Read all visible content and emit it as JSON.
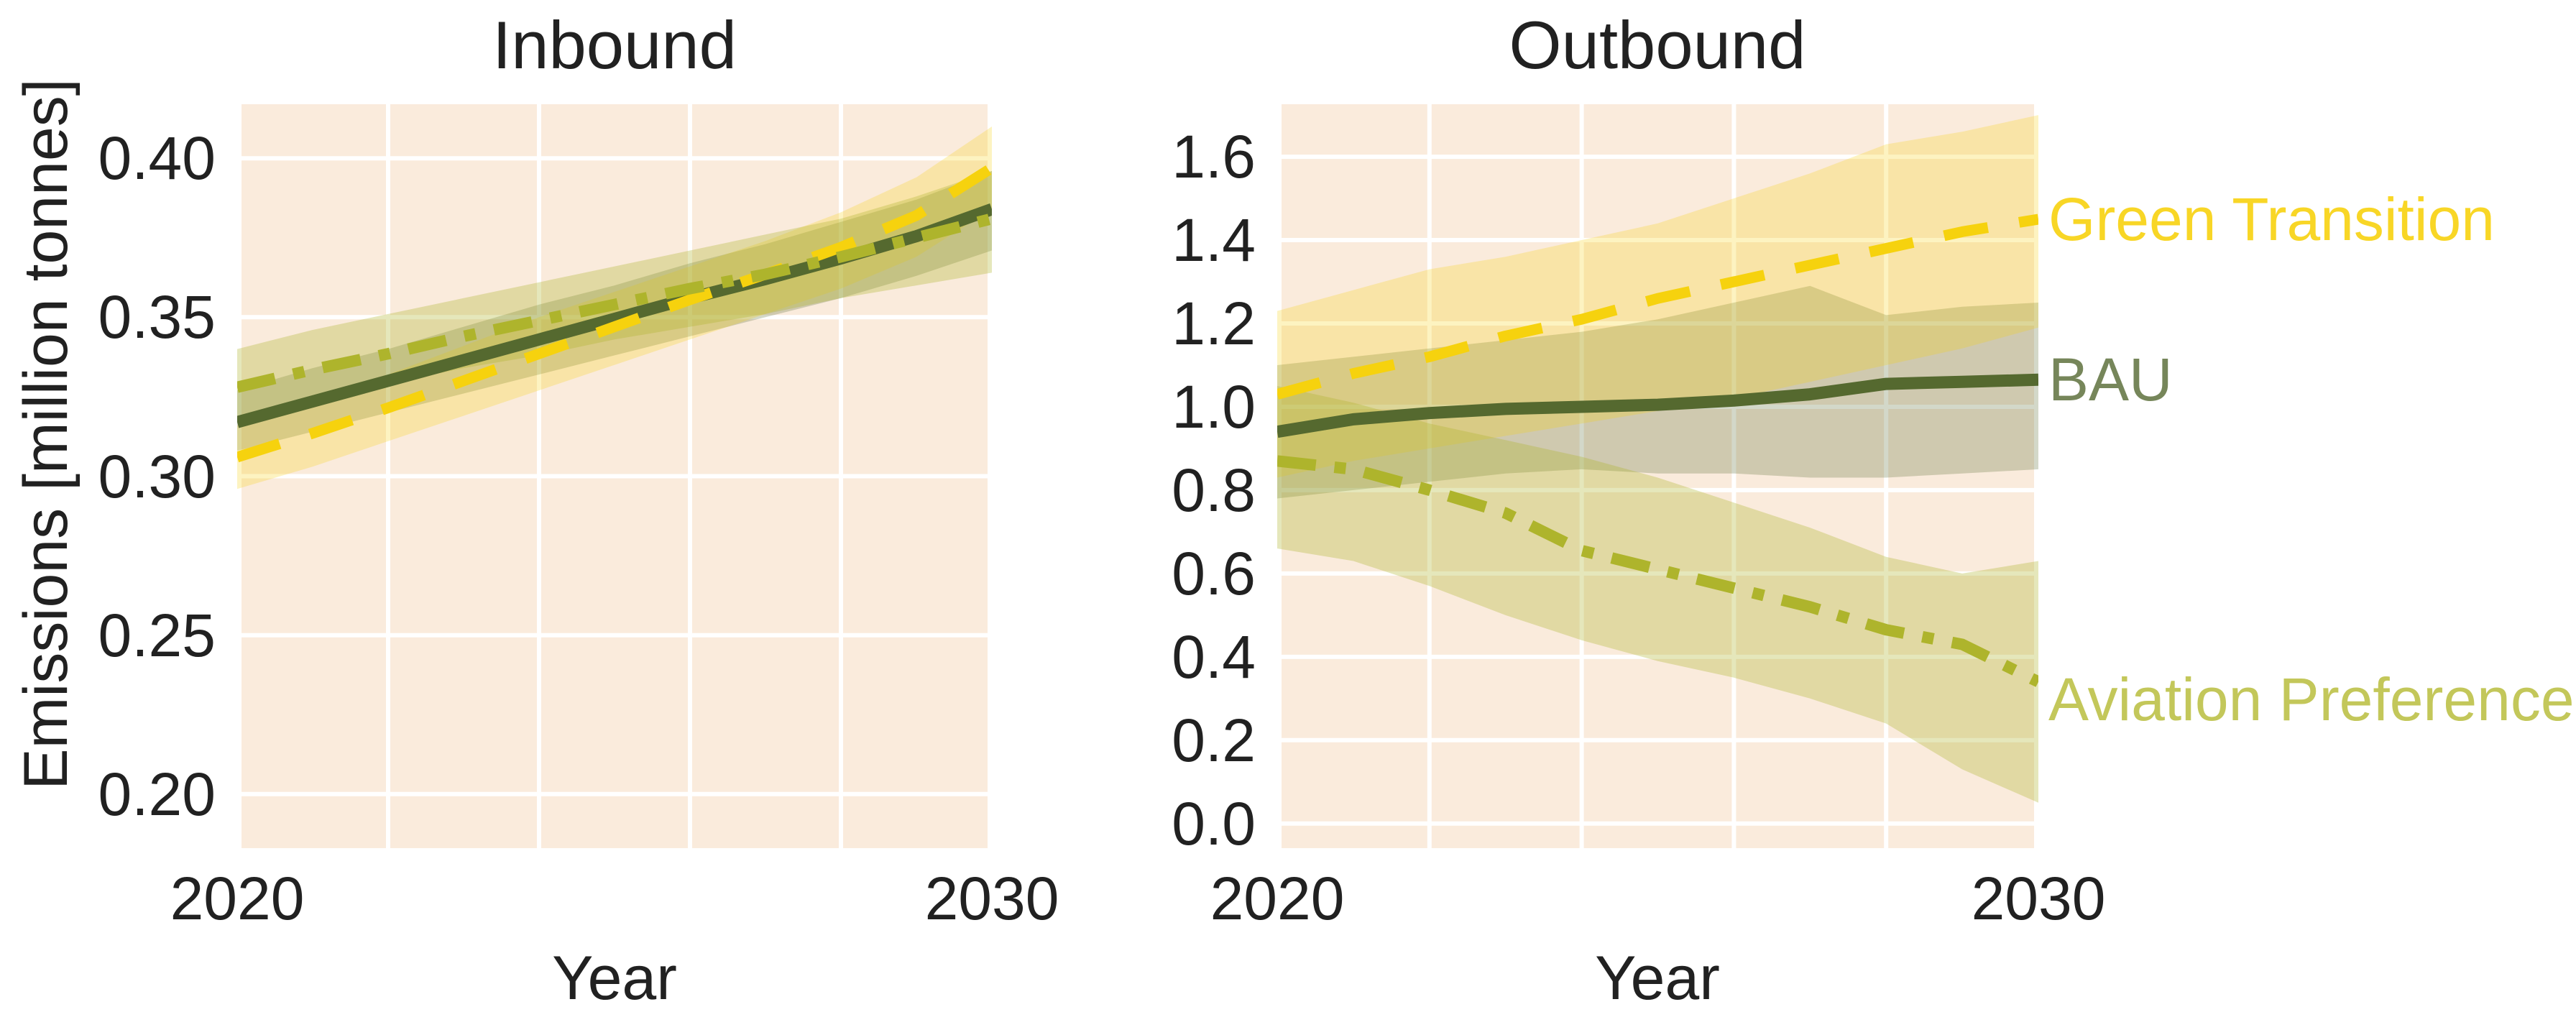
{
  "figure": {
    "background": "#ffffff",
    "plot_background": "#faebdc",
    "grid_color": "#ffffff",
    "text_color": "#212121"
  },
  "ylabel": "Emissions [million tonnes]",
  "chart_data": [
    {
      "id": "inbound",
      "type": "line",
      "title": "Inbound",
      "xlabel": "Year",
      "ylabel": "Emissions [million tonnes]",
      "grid": true,
      "legend_position": "none",
      "x": [
        2020,
        2021,
        2022,
        2023,
        2024,
        2025,
        2026,
        2027,
        2028,
        2029,
        2030
      ],
      "x_tick_values": [
        2020,
        2030
      ],
      "x_tick_labels": [
        "2020",
        "2030"
      ],
      "x_grid_step": 2,
      "y_tick_values": [
        0.4,
        0.35,
        0.3,
        0.25,
        0.2
      ],
      "y_tick_labels": [
        "0.40",
        "0.35",
        "0.30",
        "0.25",
        "0.20"
      ],
      "ylim": [
        0.183,
        0.417
      ],
      "axes_rect": [
        330,
        145,
        1050,
        1035
      ],
      "series": [
        {
          "key": "bau",
          "label": "BAU",
          "style": "solid",
          "width": 17,
          "color": "#55692f",
          "band_opacity": 0.26,
          "values": [
            0.317,
            0.3235,
            0.33,
            0.3365,
            0.343,
            0.3495,
            0.356,
            0.362,
            0.3685,
            0.3755,
            0.384
          ],
          "band_lower": [
            0.308,
            0.314,
            0.32,
            0.326,
            0.332,
            0.338,
            0.344,
            0.35,
            0.356,
            0.363,
            0.371
          ],
          "band_upper": [
            0.327,
            0.334,
            0.34,
            0.347,
            0.354,
            0.36,
            0.367,
            0.373,
            0.38,
            0.387,
            0.396
          ]
        },
        {
          "key": "green_transition",
          "label": "Green Transition",
          "style": "dashed",
          "width": 15,
          "color": "#f6d20e",
          "band_opacity": 0.26,
          "values": [
            0.306,
            0.3135,
            0.3215,
            0.33,
            0.3385,
            0.347,
            0.3555,
            0.3635,
            0.372,
            0.382,
            0.397
          ],
          "band_lower": [
            0.296,
            0.303,
            0.311,
            0.319,
            0.327,
            0.335,
            0.343,
            0.351,
            0.359,
            0.369,
            0.384
          ],
          "band_upper": [
            0.316,
            0.324,
            0.332,
            0.341,
            0.35,
            0.358,
            0.366,
            0.374,
            0.383,
            0.394,
            0.41
          ]
        },
        {
          "key": "aviation_preference",
          "label": "Aviation Preference",
          "style": "dashdot",
          "width": 16,
          "color": "#aeb42c",
          "band_opacity": 0.32,
          "values": [
            0.328,
            0.3335,
            0.3385,
            0.344,
            0.349,
            0.354,
            0.359,
            0.3635,
            0.369,
            0.375,
            0.381
          ],
          "band_lower": [
            0.319,
            0.324,
            0.329,
            0.334,
            0.338,
            0.343,
            0.347,
            0.351,
            0.356,
            0.36,
            0.364
          ],
          "band_upper": [
            0.34,
            0.346,
            0.351,
            0.356,
            0.361,
            0.366,
            0.371,
            0.376,
            0.381,
            0.388,
            0.396
          ]
        }
      ]
    },
    {
      "id": "outbound",
      "type": "line",
      "title": "Outbound",
      "xlabel": "Year",
      "ylabel": "Emissions [million tonnes]",
      "grid": true,
      "legend_position": "right-of-plot",
      "legend_x": 2850,
      "x": [
        2020,
        2021,
        2022,
        2023,
        2024,
        2025,
        2026,
        2027,
        2028,
        2029,
        2030
      ],
      "x_tick_values": [
        2020,
        2030
      ],
      "x_tick_labels": [
        "2020",
        "2030"
      ],
      "x_grid_step": 2,
      "y_tick_values": [
        1.6,
        1.4,
        1.2,
        1.0,
        0.8,
        0.6,
        0.4,
        0.2,
        0.0
      ],
      "y_tick_labels": [
        "1.6",
        "1.4",
        "1.2",
        "1.0",
        "0.8",
        "0.6",
        "0.4",
        "0.2",
        "0.0"
      ],
      "ylim": [
        -0.059,
        1.726
      ],
      "axes_rect": [
        1777,
        145,
        1059,
        1035
      ],
      "series": [
        {
          "key": "bau",
          "label": "BAU",
          "legend_label": "BAU",
          "label_color": "#76865a",
          "legend_dy": 0,
          "style": "solid",
          "width": 17,
          "color": "#55692f",
          "band_opacity": 0.26,
          "values": [
            0.94,
            0.97,
            0.985,
            0.995,
            1.0,
            1.005,
            1.015,
            1.03,
            1.055,
            1.06,
            1.065
          ],
          "band_lower": [
            0.78,
            0.8,
            0.82,
            0.84,
            0.85,
            0.84,
            0.84,
            0.83,
            0.83,
            0.84,
            0.85
          ],
          "band_upper": [
            1.1,
            1.12,
            1.14,
            1.16,
            1.18,
            1.21,
            1.25,
            1.29,
            1.22,
            1.24,
            1.25
          ]
        },
        {
          "key": "green_transition",
          "label": "Green Transition",
          "legend_label": "Green Transition",
          "label_color": "#f8d626",
          "legend_dy": 0,
          "style": "dashed",
          "width": 15,
          "color": "#f6d20e",
          "band_opacity": 0.26,
          "values": [
            1.03,
            1.08,
            1.12,
            1.17,
            1.21,
            1.26,
            1.3,
            1.34,
            1.38,
            1.42,
            1.45
          ],
          "band_lower": [
            0.83,
            0.87,
            0.9,
            0.93,
            0.96,
            0.99,
            1.02,
            1.06,
            1.1,
            1.14,
            1.19
          ],
          "band_upper": [
            1.23,
            1.28,
            1.33,
            1.36,
            1.4,
            1.44,
            1.5,
            1.56,
            1.63,
            1.66,
            1.7
          ]
        },
        {
          "key": "aviation_preference",
          "label": "Aviation Preference",
          "legend_label": "Aviation Preference",
          "label_color": "#c3c75a",
          "legend_dy": 24,
          "style": "dashdot",
          "width": 16,
          "color": "#aeb42c",
          "band_opacity": 0.32,
          "values": [
            0.87,
            0.85,
            0.8,
            0.745,
            0.655,
            0.61,
            0.565,
            0.52,
            0.465,
            0.43,
            0.34
          ],
          "band_lower": [
            0.66,
            0.63,
            0.57,
            0.5,
            0.44,
            0.39,
            0.35,
            0.3,
            0.24,
            0.13,
            0.05
          ],
          "band_upper": [
            1.05,
            1.01,
            0.96,
            0.92,
            0.88,
            0.83,
            0.77,
            0.71,
            0.64,
            0.6,
            0.63
          ]
        }
      ]
    }
  ]
}
